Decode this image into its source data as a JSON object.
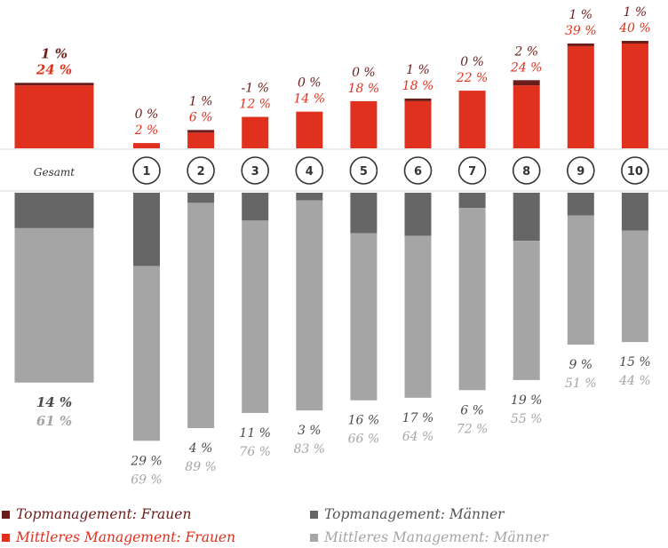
{
  "chart_data": {
    "type": "bar",
    "categories": [
      "Gesamt",
      "1",
      "2",
      "3",
      "4",
      "5",
      "6",
      "7",
      "8",
      "9",
      "10"
    ],
    "series": [
      {
        "name": "Topmanagement: Frauen",
        "values": [
          1,
          0,
          1,
          -1,
          0,
          0,
          1,
          0,
          2,
          1,
          1
        ]
      },
      {
        "name": "Mittleres Management: Frauen",
        "values": [
          24,
          2,
          6,
          12,
          14,
          18,
          18,
          22,
          24,
          39,
          40
        ]
      },
      {
        "name": "Topmanagement: Männer",
        "values": [
          14,
          29,
          4,
          11,
          3,
          16,
          17,
          6,
          19,
          9,
          15
        ]
      },
      {
        "name": "Mittleres Management: Männer",
        "values": [
          61,
          69,
          89,
          76,
          83,
          66,
          64,
          72,
          55,
          51,
          44
        ]
      }
    ],
    "value_labels": {
      "top_women": [
        "1 %",
        "0 %",
        "1 %",
        "-1 %",
        "0 %",
        "0 %",
        "1 %",
        "0 %",
        "2 %",
        "1 %",
        "1 %"
      ],
      "middle_women": [
        "24 %",
        "2 %",
        "6 %",
        "12 %",
        "14 %",
        "18 %",
        "18 %",
        "22 %",
        "24 %",
        "39 %",
        "40 %"
      ],
      "top_men": [
        "14 %",
        "29 %",
        "4 %",
        "11 %",
        "3 %",
        "16 %",
        "17 %",
        "6 %",
        "19 %",
        "9 %",
        "15 %"
      ],
      "middle_men": [
        "61 %",
        "69 %",
        "89 %",
        "76 %",
        "83 %",
        "66 %",
        "64 %",
        "72 %",
        "55 %",
        "51 %",
        "44 %"
      ]
    },
    "colors": {
      "top_women": "#6b1d1a",
      "middle_women": "#e0301e",
      "top_men": "#666666",
      "middle_men": "#a5a5a5",
      "text_dark": "#4a4a4a",
      "text_light": "#a5a5a5"
    },
    "legend_position": "bottom",
    "grid": false
  },
  "legend": {
    "top_women": "Topmanagement: Frauen",
    "middle_women": "Mittleres Management: Frauen",
    "top_men": "Topmanagement: Männer",
    "middle_men": "Mittleres Management: Männer"
  }
}
